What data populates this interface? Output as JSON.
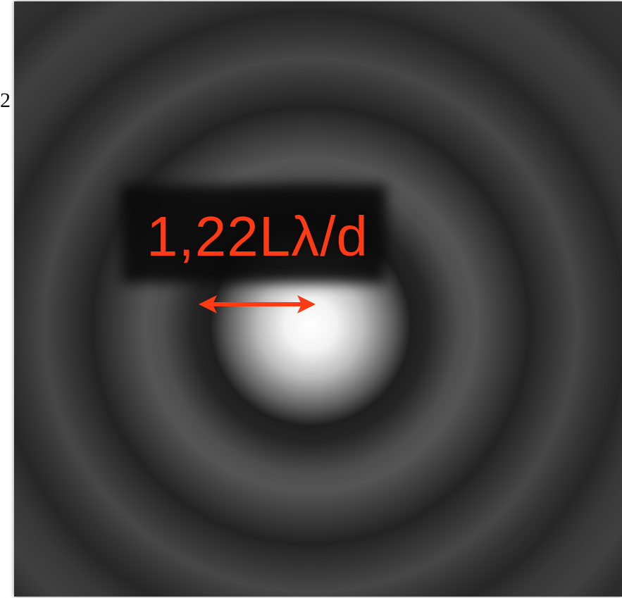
{
  "edge_label": "2",
  "formula": {
    "text": "1,22Lλ/d",
    "color": "#ff3b16"
  },
  "diagram": {
    "subject": "airy-disk-diffraction-pattern",
    "colors": {
      "central_disk": "#ffffff",
      "ring_dark": "#1e1e1e",
      "ring_light": "#5a5a5a",
      "background": "#333333",
      "arrow": "#ff3b16"
    }
  }
}
